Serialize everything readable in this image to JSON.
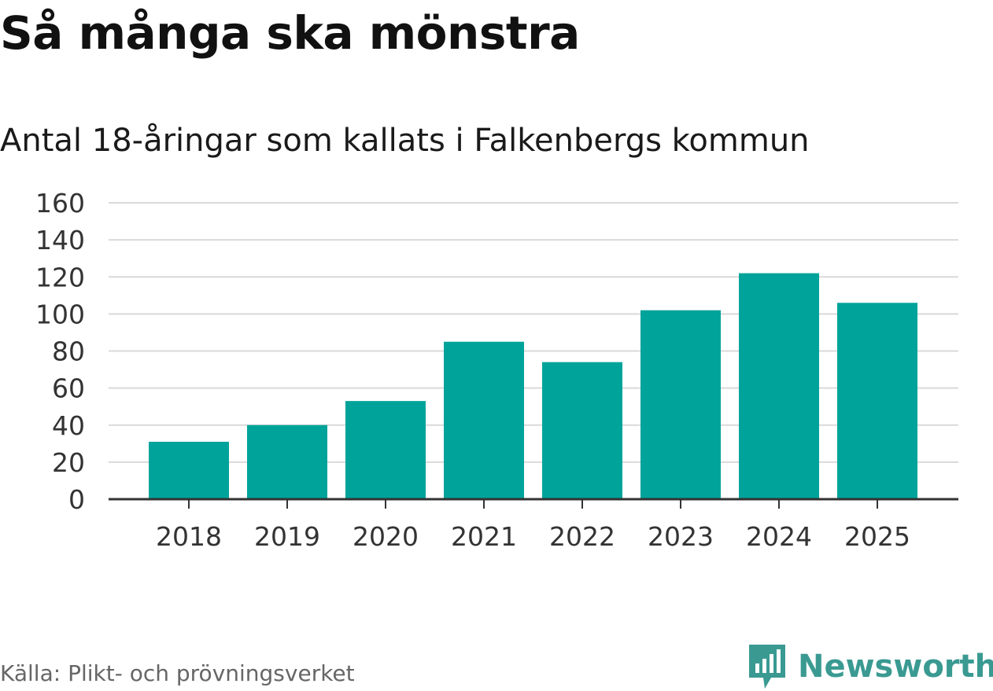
{
  "header": {
    "title": "Så många ska mönstra",
    "subtitle": "Antal 18-åringar som kallats i Falkenbergs kommun"
  },
  "footer": {
    "source": "Källa: Plikt- och prövningsverket",
    "brand": "Newsworthy",
    "brand_icon": "bar-chart-speech-bubble-icon"
  },
  "colors": {
    "bar": "#00a39a",
    "brand": "#3a9a92",
    "grid": "#d9d9d9",
    "axis": "#333333",
    "tick": "#333333"
  },
  "chart_data": {
    "type": "bar",
    "title": "Så många ska mönstra",
    "subtitle": "Antal 18-åringar som kallats i Falkenbergs kommun",
    "categories": [
      "2018",
      "2019",
      "2020",
      "2021",
      "2022",
      "2023",
      "2024",
      "2025"
    ],
    "values": [
      31,
      40,
      53,
      85,
      74,
      102,
      122,
      106
    ],
    "xlabel": "",
    "ylabel": "",
    "ylim": [
      0,
      160
    ],
    "yticks": [
      0,
      20,
      40,
      60,
      80,
      100,
      120,
      140,
      160
    ],
    "grid": true,
    "legend": "none"
  }
}
